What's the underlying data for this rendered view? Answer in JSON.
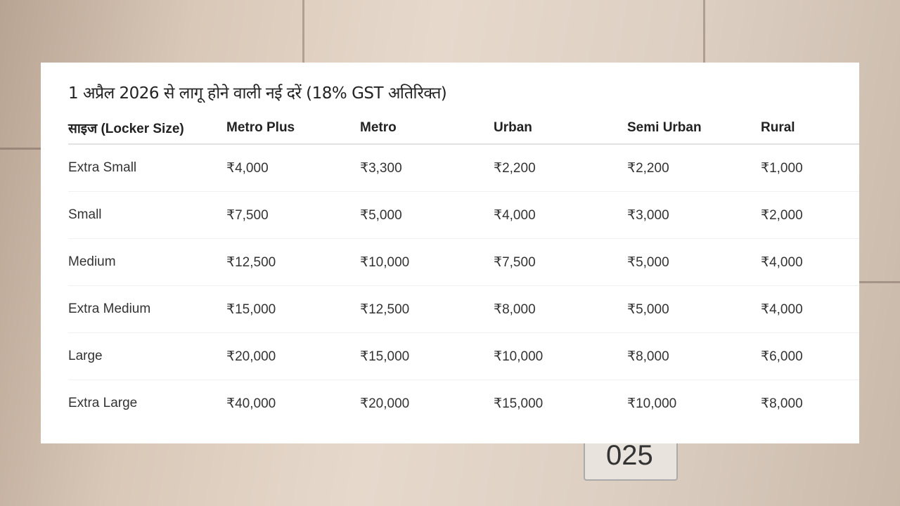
{
  "title": "1 अप्रैल 2026 से लागू होने वाली नई दरें (18% GST अतिरिक्त)",
  "headers": [
    "साइज (Locker Size)",
    "Metro Plus",
    "Metro",
    "Urban",
    "Semi Urban",
    "Rural"
  ],
  "rows": [
    [
      "Extra Small",
      "₹4,000",
      "₹3,300",
      "₹2,200",
      "₹2,200",
      "₹1,000"
    ],
    [
      "Small",
      "₹7,500",
      "₹5,000",
      "₹4,000",
      "₹3,000",
      "₹2,000"
    ],
    [
      "Medium",
      "₹12,500",
      "₹10,000",
      "₹7,500",
      "₹5,000",
      "₹4,000"
    ],
    [
      "Extra Medium",
      "₹15,000",
      "₹12,500",
      "₹8,000",
      "₹5,000",
      "₹4,000"
    ],
    [
      "Large",
      "₹20,000",
      "₹15,000",
      "₹10,000",
      "₹8,000",
      "₹6,000"
    ],
    [
      "Extra Large",
      "₹40,000",
      "₹20,000",
      "₹15,000",
      "₹10,000",
      "₹8,000"
    ]
  ],
  "background_label": "025"
}
